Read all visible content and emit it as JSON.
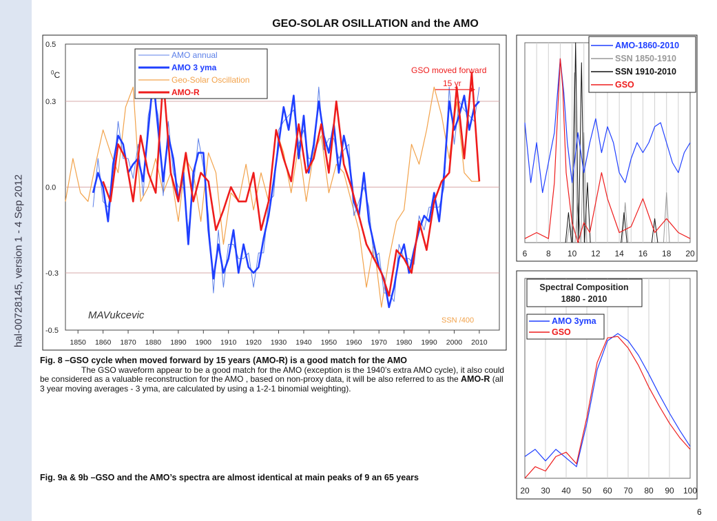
{
  "sidebar": {
    "text": "hal-00728145, version 1 - 4 Sep 2012"
  },
  "page_number": "6",
  "caption_fig8": {
    "title": "Fig. 8 –GSO cycle when moved forward by 15 years  (AMO-R) is a good match for the AMO",
    "body_1": "The GSO waveform appear to be a good match for the AMO  (exception is the 1940’s extra AMO cycle), it also could be considered as a valuable reconstruction for the AMO , based on non-proxy data, it will be also referred to as the ",
    "body_bold": "AMO-R",
    "body_2": " (all 3 year moving averages - 3 yma, are calculated by using a 1-2-1 binomial weighting)."
  },
  "caption_fig9": "Fig. 9a & 9b –GSO and  the AMO’s  spectra are almost identical at main peaks of 9 an 65 years",
  "colors": {
    "blue": "#1f3fff",
    "light_blue": "#5b7fe8",
    "orange": "#f2a24a",
    "red": "#ee1c1c",
    "gray": "#999999",
    "black": "#111111",
    "grid": "#d7a9a9"
  },
  "chart_data": [
    {
      "type": "line",
      "title": "GEO-SOLAR  OSILLATION  and the AMO",
      "ylabel": "0C",
      "ylim": [
        -0.5,
        0.5
      ],
      "yticks": [
        "0.5",
        "0.3",
        "0.0",
        "-0.3",
        "-0.5"
      ],
      "xlim": [
        1845,
        2018
      ],
      "xticks": [
        "1850",
        "1860",
        "1870",
        "1880",
        "1890",
        "1900",
        "1910",
        "1920",
        "1930",
        "1940",
        "1950",
        "1960",
        "1970",
        "1980",
        "1990",
        "2000",
        "2010"
      ],
      "legend": [
        "AMO annual",
        "AMO 3 yma",
        "Geo-Solar Oscillation",
        "AMO-R"
      ],
      "annotations": {
        "gso_moved": "GSO moved forward",
        "shift": "15 yr",
        "signature": "MAVukcevic",
        "ssn": "SSN /400"
      },
      "series": [
        {
          "name": "AMO 3 yma",
          "x": [
            1856,
            1858,
            1860,
            1862,
            1864,
            1866,
            1868,
            1870,
            1872,
            1874,
            1876,
            1878,
            1880,
            1882,
            1884,
            1886,
            1888,
            1890,
            1892,
            1894,
            1896,
            1898,
            1900,
            1902,
            1904,
            1906,
            1908,
            1910,
            1912,
            1914,
            1916,
            1918,
            1920,
            1922,
            1924,
            1926,
            1928,
            1930,
            1932,
            1934,
            1936,
            1938,
            1940,
            1942,
            1944,
            1946,
            1948,
            1950,
            1952,
            1954,
            1956,
            1958,
            1960,
            1962,
            1964,
            1966,
            1968,
            1970,
            1972,
            1974,
            1976,
            1978,
            1980,
            1982,
            1984,
            1986,
            1988,
            1990,
            1992,
            1994,
            1996,
            1998,
            2000,
            2002,
            2004,
            2006,
            2008,
            2010
          ],
          "values": [
            -0.02,
            0.05,
            0.0,
            -0.12,
            0.08,
            0.18,
            0.15,
            0.05,
            0.08,
            0.1,
            0.02,
            0.2,
            0.38,
            0.2,
            0.02,
            0.18,
            0.1,
            -0.05,
            0.05,
            -0.2,
            0.05,
            0.12,
            0.12,
            -0.15,
            -0.32,
            -0.2,
            -0.3,
            -0.25,
            -0.15,
            -0.3,
            -0.2,
            -0.28,
            -0.3,
            -0.28,
            -0.18,
            -0.1,
            0.02,
            0.15,
            0.28,
            0.2,
            0.32,
            0.1,
            0.25,
            0.05,
            0.15,
            0.3,
            0.18,
            0.12,
            0.22,
            0.05,
            0.18,
            0.1,
            -0.05,
            -0.1,
            0.05,
            -0.12,
            -0.2,
            -0.28,
            -0.32,
            -0.42,
            -0.35,
            -0.25,
            -0.2,
            -0.3,
            -0.22,
            -0.15,
            -0.1,
            -0.12,
            -0.02,
            -0.12,
            0.05,
            0.3,
            0.2,
            0.25,
            0.32,
            0.2,
            0.28,
            0.3
          ]
        },
        {
          "name": "Geo-Solar Oscillation",
          "x": [
            1845,
            1848,
            1851,
            1854,
            1857,
            1860,
            1863,
            1866,
            1869,
            1872,
            1875,
            1878,
            1881,
            1884,
            1887,
            1890,
            1893,
            1896,
            1899,
            1902,
            1905,
            1908,
            1911,
            1914,
            1917,
            1920,
            1923,
            1926,
            1929,
            1932,
            1935,
            1938,
            1941,
            1944,
            1947,
            1950,
            1953,
            1956,
            1959,
            1962,
            1965,
            1968,
            1971,
            1974,
            1977,
            1980,
            1983,
            1986,
            1989,
            1992,
            1995,
            1998,
            2001,
            2004,
            2007,
            2010
          ],
          "values": [
            -0.05,
            0.1,
            -0.02,
            -0.05,
            0.08,
            0.2,
            0.12,
            0.05,
            0.28,
            0.35,
            -0.05,
            0.0,
            0.1,
            -0.02,
            0.05,
            -0.12,
            0.1,
            0.05,
            -0.12,
            0.12,
            0.05,
            -0.2,
            -0.02,
            -0.05,
            0.08,
            -0.08,
            0.05,
            -0.05,
            0.2,
            0.12,
            -0.02,
            0.15,
            -0.05,
            0.12,
            0.18,
            -0.02,
            0.08,
            0.05,
            -0.05,
            -0.15,
            -0.35,
            -0.2,
            -0.42,
            -0.25,
            -0.12,
            -0.08,
            0.15,
            0.08,
            0.2,
            0.35,
            0.25,
            0.1,
            0.3,
            0.05,
            0.02,
            0.02
          ]
        },
        {
          "name": "AMO-R",
          "x": [
            1860,
            1863,
            1866,
            1869,
            1872,
            1875,
            1878,
            1881,
            1884,
            1887,
            1890,
            1893,
            1896,
            1899,
            1902,
            1905,
            1908,
            1911,
            1914,
            1917,
            1920,
            1923,
            1926,
            1929,
            1932,
            1935,
            1938,
            1941,
            1944,
            1947,
            1950,
            1953,
            1956,
            1959,
            1962,
            1965,
            1968,
            1971,
            1974,
            1977,
            1980,
            1983,
            1986,
            1989,
            1992,
            1995,
            1998,
            2001,
            2004,
            2007,
            2010
          ],
          "values": [
            0.02,
            -0.05,
            0.15,
            0.1,
            -0.05,
            0.18,
            0.05,
            -0.02,
            0.38,
            0.05,
            -0.05,
            0.12,
            -0.05,
            0.05,
            0.02,
            -0.15,
            -0.08,
            0.0,
            -0.05,
            -0.05,
            0.05,
            -0.15,
            -0.05,
            0.2,
            0.1,
            0.02,
            0.22,
            0.05,
            0.1,
            0.22,
            0.05,
            0.3,
            0.08,
            0.0,
            -0.1,
            -0.2,
            -0.25,
            -0.3,
            -0.38,
            -0.22,
            -0.25,
            -0.3,
            -0.12,
            -0.22,
            -0.05,
            0.02,
            0.05,
            0.35,
            0.1,
            0.4,
            0.02
          ]
        }
      ]
    },
    {
      "type": "line",
      "title": "",
      "xlim": [
        6,
        20
      ],
      "xticks": [
        "6",
        "8",
        "10",
        "12",
        "14",
        "16",
        "18",
        "20"
      ],
      "legend": [
        "AMO-1860-2010",
        "SSN 1850-1910",
        "SSN 1910-2010",
        "GSO"
      ],
      "series": [
        {
          "name": "AMO-1860-2010",
          "x": [
            6,
            6.5,
            7,
            7.5,
            8,
            8.5,
            9,
            9.3,
            9.6,
            10,
            10.5,
            11,
            11.5,
            12,
            12.5,
            13,
            13.5,
            14,
            14.5,
            15,
            15.5,
            16,
            16.5,
            17,
            17.5,
            18,
            18.5,
            19,
            19.5,
            20
          ],
          "values": [
            0.6,
            0.3,
            0.5,
            0.25,
            0.4,
            0.55,
            0.92,
            0.75,
            0.5,
            0.3,
            0.55,
            0.35,
            0.5,
            0.62,
            0.45,
            0.58,
            0.5,
            0.35,
            0.3,
            0.42,
            0.5,
            0.45,
            0.5,
            0.58,
            0.6,
            0.5,
            0.4,
            0.35,
            0.45,
            0.5
          ]
        },
        {
          "name": "GSO",
          "x": [
            6,
            7,
            8,
            8.5,
            9,
            9.2,
            9.5,
            10,
            10.5,
            11,
            11.5,
            12,
            12.5,
            13,
            14,
            15,
            16,
            17,
            18,
            19,
            20
          ],
          "values": [
            0.02,
            0.05,
            0.02,
            0.3,
            0.92,
            0.78,
            0.35,
            0.1,
            0.0,
            0.1,
            0.05,
            0.2,
            0.35,
            0.22,
            0.05,
            0.08,
            0.22,
            0.05,
            0.12,
            0.05,
            0.02
          ]
        }
      ]
    },
    {
      "type": "line",
      "title": "Spectral Composition 1880 - 2010",
      "xlim": [
        20,
        100
      ],
      "xticks": [
        "20",
        "30",
        "40",
        "50",
        "60",
        "70",
        "80",
        "90",
        "100"
      ],
      "legend": [
        "AMO 3yma",
        "GSO"
      ],
      "series": [
        {
          "name": "AMO 3yma",
          "x": [
            20,
            25,
            30,
            35,
            40,
            45,
            50,
            55,
            60,
            65,
            70,
            75,
            80,
            85,
            90,
            95,
            100
          ],
          "values": [
            0.15,
            0.2,
            0.12,
            0.2,
            0.14,
            0.08,
            0.38,
            0.75,
            0.95,
            1.0,
            0.95,
            0.85,
            0.72,
            0.58,
            0.45,
            0.33,
            0.22
          ]
        },
        {
          "name": "GSO",
          "x": [
            20,
            25,
            30,
            35,
            40,
            45,
            50,
            55,
            60,
            65,
            70,
            75,
            80,
            85,
            90,
            95,
            100
          ],
          "values": [
            0.0,
            0.08,
            0.05,
            0.15,
            0.18,
            0.1,
            0.42,
            0.8,
            0.97,
            0.98,
            0.9,
            0.78,
            0.63,
            0.5,
            0.38,
            0.28,
            0.2
          ]
        }
      ]
    }
  ]
}
